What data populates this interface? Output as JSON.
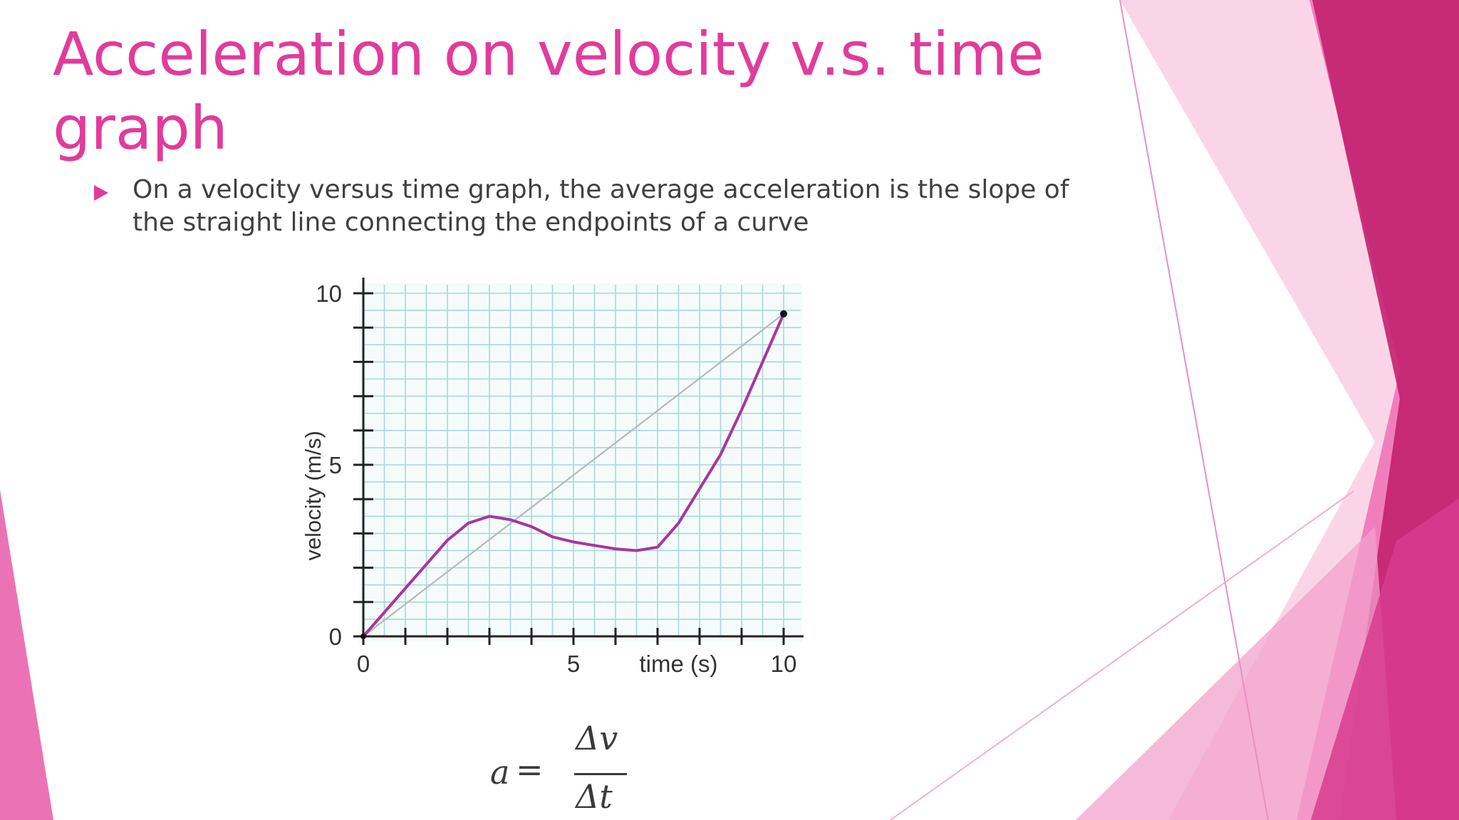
{
  "slide": {
    "title": "Acceleration on velocity v.s. time graph",
    "bullet": "On a velocity versus time graph, the average acceleration is the slope of the straight line connecting the endpoints of a curve"
  },
  "formula": {
    "lhs": "a",
    "equals": "=",
    "numerator": "Δv",
    "denominator": "Δt"
  },
  "colors": {
    "accent": "#e03c9c",
    "curve": "#a8359e",
    "grid": "#a8d8d8",
    "chord": "#b8b8b8"
  },
  "chart_data": {
    "type": "line",
    "xlabel": "time (s)",
    "ylabel": "velocity (m/s)",
    "xlim": [
      0,
      10
    ],
    "ylim": [
      0,
      10
    ],
    "x_ticks": [
      0,
      5,
      10
    ],
    "y_ticks": [
      0,
      5,
      10
    ],
    "grid": true,
    "series": [
      {
        "x": [
          0,
          0.5,
          1,
          1.5,
          2,
          2.5,
          3,
          3.5,
          4,
          4.5,
          5,
          5.5,
          6,
          6.5,
          7,
          7.5,
          8,
          8.5,
          9,
          9.5,
          10
        ],
        "y": [
          0,
          0.7,
          1.4,
          2.1,
          2.8,
          3.3,
          3.5,
          3.4,
          3.2,
          2.9,
          2.75,
          2.65,
          2.55,
          2.5,
          2.6,
          3.3,
          4.3,
          5.3,
          6.6,
          8.0,
          9.4
        ]
      },
      {
        "x": [
          0,
          10
        ],
        "y": [
          0,
          9.4
        ]
      }
    ],
    "endpoint": [
      10,
      9.4
    ]
  }
}
